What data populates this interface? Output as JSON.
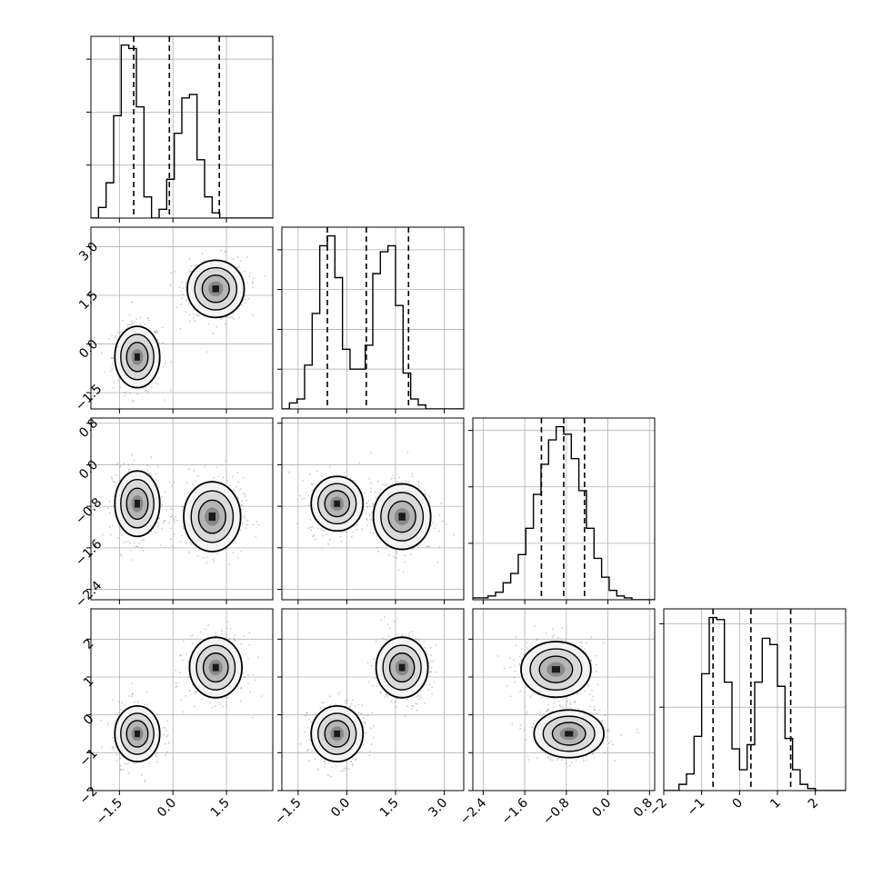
{
  "chart_data": {
    "type": "corner",
    "dimensions": 4,
    "grid": true,
    "parameters": [
      {
        "range": [
          -2.3,
          2.8
        ],
        "ticks": [
          -1.5,
          0.0,
          1.5
        ],
        "tick_labels": [
          "−1.5",
          "0.0",
          "1.5"
        ],
        "quantiles": [
          -1.1,
          -0.1,
          1.3
        ]
      },
      {
        "range": [
          -2.0,
          3.6
        ],
        "ticks": [
          -1.5,
          0.0,
          1.5,
          3.0
        ],
        "tick_labels": [
          "−1.5",
          "0.0",
          "1.5",
          "3.0"
        ],
        "quantiles": [
          -0.6,
          0.6,
          1.9
        ]
      },
      {
        "range": [
          -2.6,
          0.9
        ],
        "ticks": [
          -2.4,
          -1.6,
          -0.8,
          0.0,
          0.8
        ],
        "tick_labels": [
          "−2.4",
          "−1.6",
          "−0.8",
          "0.0",
          "0.8"
        ],
        "quantiles": [
          -1.28,
          -0.85,
          -0.45
        ]
      },
      {
        "range": [
          -2.0,
          2.8
        ],
        "ticks": [
          -2,
          -1,
          0,
          1,
          2
        ],
        "tick_labels": [
          "−2",
          "−1",
          "0",
          "1",
          "2"
        ],
        "quantiles": [
          -0.7,
          0.3,
          1.35
        ]
      }
    ],
    "histograms": [
      {
        "parameter": 0,
        "bin_start": -2.3,
        "bin_width": 0.2125,
        "counts": [
          0,
          6,
          20,
          58,
          98,
          96,
          63,
          12,
          0,
          5,
          22,
          48,
          68,
          70,
          33,
          12,
          3,
          0,
          0,
          0,
          0,
          0,
          0,
          0
        ],
        "y_ticks": [
          30,
          60,
          90
        ]
      },
      {
        "parameter": 1,
        "bin_start": -2.0,
        "bin_width": 0.2333,
        "counts": [
          0,
          3,
          5,
          22,
          48,
          82,
          87,
          66,
          30,
          20,
          20,
          32,
          68,
          79,
          82,
          52,
          18,
          5,
          2,
          0,
          0,
          0,
          0,
          0
        ],
        "y_ticks": [
          20,
          40,
          60,
          80
        ]
      },
      {
        "parameter": 2,
        "bin_start": -2.6,
        "bin_width": 0.1458,
        "counts": [
          1,
          1,
          2,
          4,
          9,
          14,
          24,
          38,
          56,
          72,
          85,
          92,
          88,
          75,
          58,
          38,
          22,
          12,
          5,
          2,
          1,
          0,
          0,
          0
        ],
        "y_ticks": [
          30,
          60,
          90
        ]
      },
      {
        "parameter": 3,
        "bin_start": -2.0,
        "bin_width": 0.2,
        "counts": [
          0,
          0,
          3,
          8,
          26,
          56,
          83,
          82,
          52,
          20,
          10,
          22,
          52,
          73,
          70,
          50,
          25,
          10,
          3,
          1,
          0,
          0,
          0,
          0
        ],
        "y_ticks": [
          40,
          80
        ]
      }
    ],
    "pairs": [
      {
        "x": 0,
        "y": 1,
        "clusters": [
          {
            "cx": -1.0,
            "cy": -0.4,
            "sx": 0.3,
            "sy": 0.45
          },
          {
            "cx": 1.2,
            "cy": 1.7,
            "sx": 0.38,
            "sy": 0.42
          }
        ]
      },
      {
        "x": 0,
        "y": 2,
        "clusters": [
          {
            "cx": -1.0,
            "cy": -0.75,
            "sx": 0.3,
            "sy": 0.3
          },
          {
            "cx": 1.1,
            "cy": -1.0,
            "sx": 0.38,
            "sy": 0.32
          }
        ]
      },
      {
        "x": 1,
        "y": 2,
        "clusters": [
          {
            "cx": -0.3,
            "cy": -0.75,
            "sx": 0.38,
            "sy": 0.25
          },
          {
            "cx": 1.7,
            "cy": -1.0,
            "sx": 0.42,
            "sy": 0.3
          }
        ]
      },
      {
        "x": 0,
        "y": 3,
        "clusters": [
          {
            "cx": -1.0,
            "cy": -0.5,
            "sx": 0.3,
            "sy": 0.35
          },
          {
            "cx": 1.2,
            "cy": 1.25,
            "sx": 0.35,
            "sy": 0.38
          }
        ]
      },
      {
        "x": 1,
        "y": 3,
        "clusters": [
          {
            "cx": -0.3,
            "cy": -0.5,
            "sx": 0.38,
            "sy": 0.35
          },
          {
            "cx": 1.7,
            "cy": 1.25,
            "sx": 0.38,
            "sy": 0.38
          }
        ]
      },
      {
        "x": 2,
        "y": 3,
        "clusters": [
          {
            "cx": -1.0,
            "cy": 1.2,
            "sx": 0.32,
            "sy": 0.35
          },
          {
            "cx": -0.75,
            "cy": -0.5,
            "sx": 0.32,
            "sy": 0.3
          }
        ]
      }
    ]
  }
}
